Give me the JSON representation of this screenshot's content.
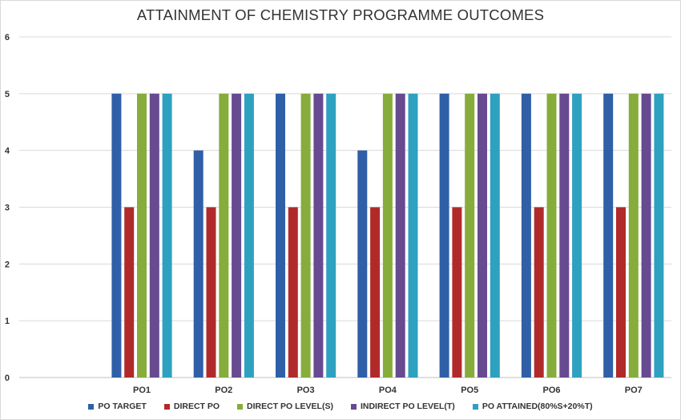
{
  "chart_data": {
    "type": "bar",
    "title": "ATTAINMENT OF CHEMISTRY PROGRAMME OUTCOMES",
    "xlabel": "",
    "ylabel": "",
    "ylim": [
      0,
      6
    ],
    "yticks": [
      "0",
      "1",
      "2",
      "3",
      "4",
      "5",
      "6"
    ],
    "grid": true,
    "legend_position": "bottom",
    "categories": [
      "PO1",
      "PO2",
      "PO3",
      "PO4",
      "PO5",
      "PO6",
      "PO7"
    ],
    "series": [
      {
        "name": "PO TARGET",
        "color": "#2f5fa7",
        "values": [
          5,
          4,
          5,
          4,
          5,
          5,
          5
        ]
      },
      {
        "name": "DIRECT PO",
        "color": "#b12a2a",
        "values": [
          3,
          3,
          3,
          3,
          3,
          3,
          3
        ]
      },
      {
        "name": "DIRECT PO LEVEL(S)",
        "color": "#86ad3b",
        "values": [
          5,
          5,
          5,
          5,
          5,
          5,
          5
        ]
      },
      {
        "name": "INDIRECT PO LEVEL(T)",
        "color": "#674a90",
        "values": [
          5,
          5,
          5,
          5,
          5,
          5,
          5
        ]
      },
      {
        "name": "PO ATTAINED(80%S+20%T)",
        "color": "#2ea1c0",
        "values": [
          5,
          5,
          5,
          5,
          5,
          5,
          5
        ]
      }
    ]
  }
}
